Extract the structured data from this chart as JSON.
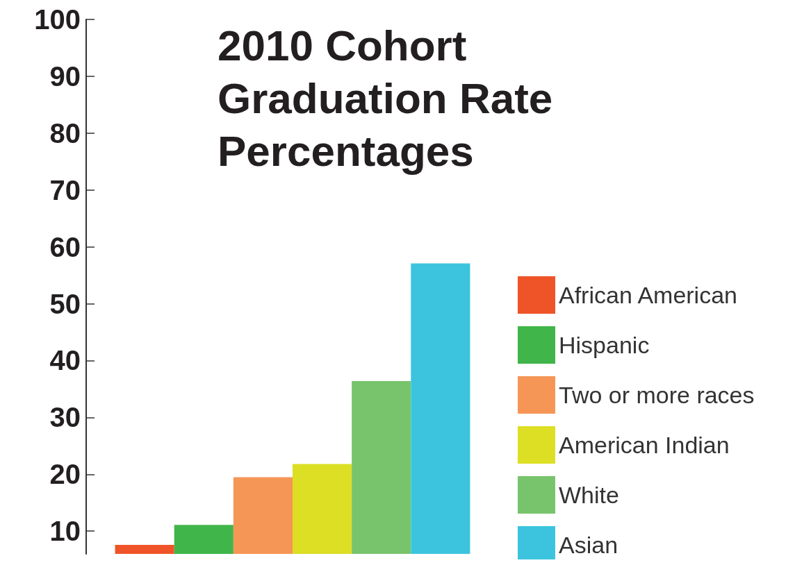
{
  "chart_data": {
    "type": "bar",
    "title": "2010 Cohort Graduation Rate Percentages",
    "categories": [
      null
    ],
    "series": [
      {
        "name": "African American",
        "color": "#ef5428",
        "values": [
          7.6
        ]
      },
      {
        "name": "Hispanic",
        "color": "#40b549",
        "values": [
          11.1
        ]
      },
      {
        "name": "Two or more races",
        "color": "#f59656",
        "values": [
          19.5
        ]
      },
      {
        "name": "American Indian",
        "color": "#dcdf24",
        "values": [
          21.8
        ]
      },
      {
        "name": "White",
        "color": "#78c46c",
        "values": [
          36.4
        ]
      },
      {
        "name": "Asian",
        "color": "#3cc4de",
        "values": [
          57.1
        ]
      }
    ],
    "ylim": [
      6,
      100
    ],
    "yticks": [
      10,
      20,
      30,
      40,
      50,
      60,
      70,
      80,
      90,
      100
    ],
    "grid": false,
    "legend": "right"
  }
}
